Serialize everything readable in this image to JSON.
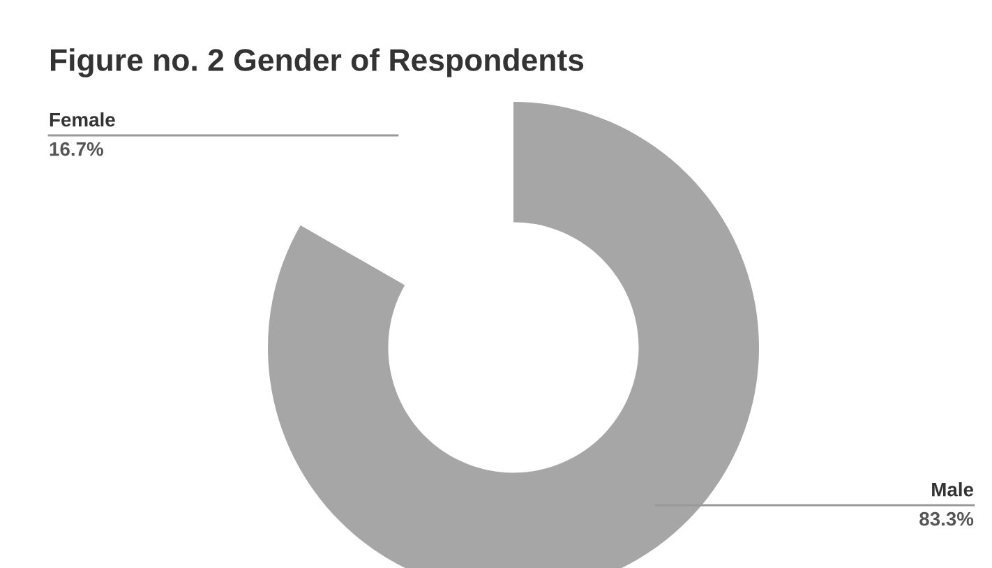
{
  "chart_data": {
    "type": "donut",
    "title": "Figure no. 2 Gender of Respondents",
    "categories": [
      "Male",
      "Female"
    ],
    "values": [
      83.3,
      16.7
    ],
    "colors": [
      "#a6a6a6",
      "#ffffff"
    ],
    "value_labels": [
      "83.3%",
      "16.7%"
    ],
    "legend": false
  }
}
